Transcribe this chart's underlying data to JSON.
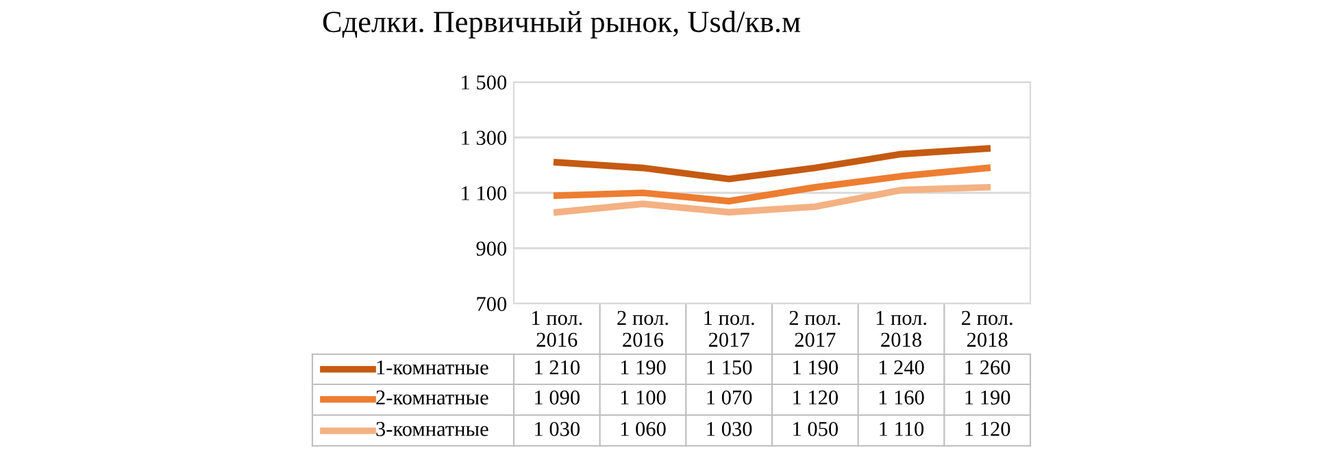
{
  "chart_data": {
    "type": "line",
    "title": "Сделки. Первичный рынок, Usd/кв.м",
    "categories": [
      "1 пол.\n2016",
      "2 пол.\n2016",
      "1 пол.\n2017",
      "2 пол.\n2017",
      "1 пол.\n2018",
      "2 пол.\n2018"
    ],
    "series": [
      {
        "name": "1-комнатные",
        "color": "#c55a11",
        "values": [
          1210,
          1190,
          1150,
          1190,
          1240,
          1260
        ],
        "value_labels": [
          "1 210",
          "1 190",
          "1 150",
          "1 190",
          "1 240",
          "1 260"
        ]
      },
      {
        "name": "2-комнатные",
        "color": "#ed7d31",
        "values": [
          1090,
          1100,
          1070,
          1120,
          1160,
          1190
        ],
        "value_labels": [
          "1 090",
          "1 100",
          "1 070",
          "1 120",
          "1 160",
          "1 190"
        ]
      },
      {
        "name": "3-комнатные",
        "color": "#f4b183",
        "values": [
          1030,
          1060,
          1030,
          1050,
          1110,
          1120
        ],
        "value_labels": [
          "1 030",
          "1 060",
          "1 030",
          "1 050",
          "1 110",
          "1 120"
        ]
      }
    ],
    "ylim": [
      700,
      1500
    ],
    "yticks": [
      {
        "value": 700,
        "label": "700"
      },
      {
        "value": 900,
        "label": "900"
      },
      {
        "value": 1100,
        "label": "1 100"
      },
      {
        "value": 1300,
        "label": "1 300"
      },
      {
        "value": 1500,
        "label": "1 500"
      }
    ],
    "grid": "y",
    "legend": "bottom",
    "marker": "none",
    "line_style": "solid"
  }
}
